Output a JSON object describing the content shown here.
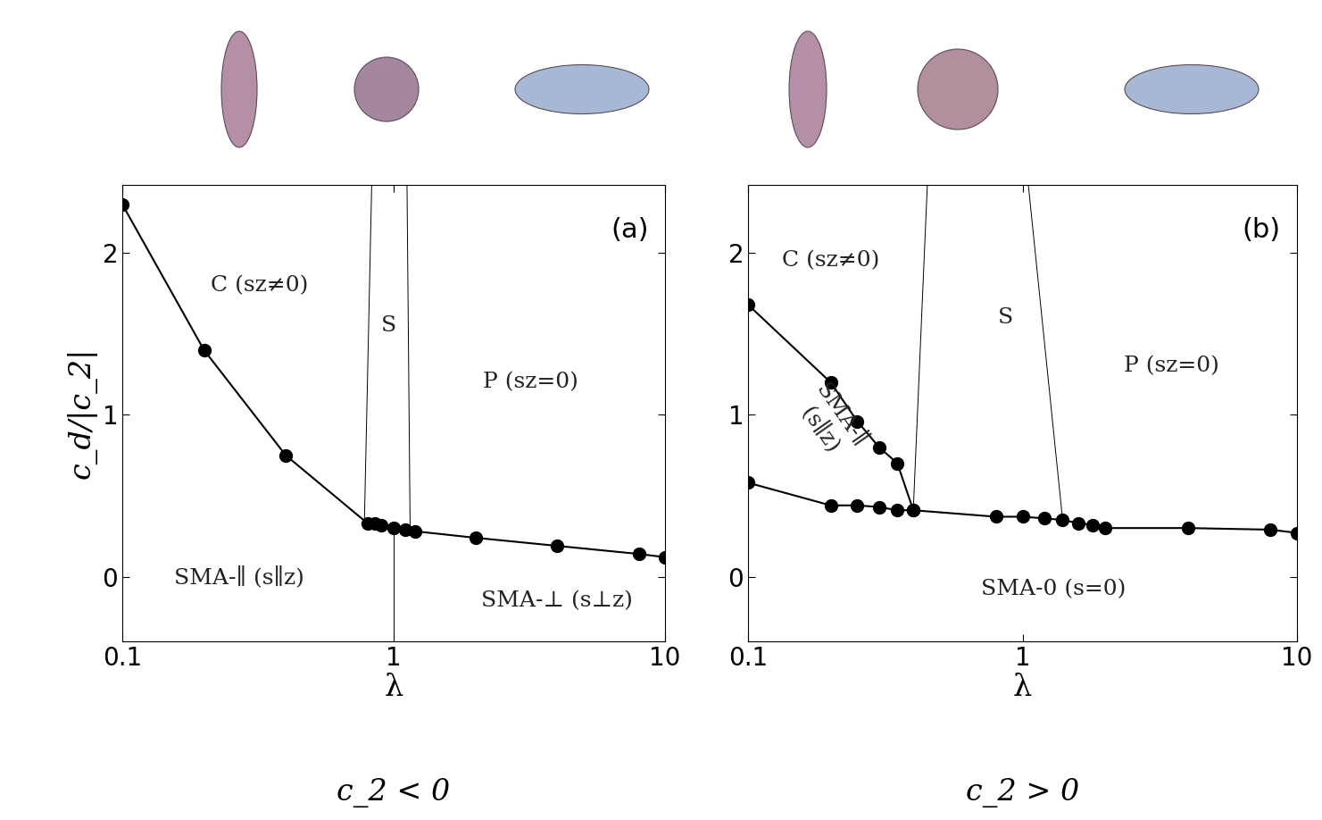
{
  "chart_data": [
    {
      "type": "line",
      "title": "(a)",
      "subtitle": "c_2 < 0",
      "x_label": "λ",
      "y_label": "c_d/|c_2|",
      "log": "x",
      "xlim": [
        0.1,
        10
      ],
      "ylim": [
        -0.4,
        2.42
      ],
      "xticks": [
        0.1,
        1,
        10
      ],
      "yticks": [
        0,
        1,
        2
      ],
      "series": [
        {
          "color": "#000000",
          "marker": "o",
          "line_style": "solid",
          "x": [
            0.1,
            0.2,
            0.4,
            0.8,
            0.85,
            0.9,
            1.0,
            1.1,
            1.2,
            2,
            4,
            8,
            10
          ],
          "values": [
            2.3,
            1.4,
            0.75,
            0.33,
            0.33,
            0.32,
            0.3,
            0.29,
            0.28,
            0.24,
            0.19,
            0.14,
            0.12
          ]
        },
        {
          "color": "#000000",
          "marker": "none",
          "line_style": "solid",
          "x": [
            0.78,
            0.83
          ],
          "values": [
            0.33,
            2.42
          ]
        },
        {
          "color": "#000000",
          "marker": "none",
          "line_style": "solid",
          "x": [
            1.15,
            1.12
          ],
          "values": [
            0.29,
            2.42
          ]
        },
        {
          "color": "#000000",
          "marker": "none",
          "line_style": "solid",
          "x": [
            1.0,
            1.0
          ],
          "values": [
            -0.4,
            0.3
          ]
        }
      ],
      "annotations": [
        {
          "text": "C (sz≠0)"
        },
        {
          "text": "S"
        },
        {
          "text": "P (sz=0)"
        },
        {
          "text": "SMA-∥ (s∥z)"
        },
        {
          "text": "SMA-⊥ (s⊥z)"
        }
      ]
    },
    {
      "type": "line",
      "title": "(b)",
      "subtitle": "c_2 > 0",
      "x_label": "λ",
      "log": "x",
      "xlim": [
        0.1,
        10
      ],
      "ylim": [
        -0.4,
        2.42
      ],
      "xticks": [
        0.1,
        1,
        10
      ],
      "yticks": [
        0,
        1,
        2
      ],
      "series": [
        {
          "color": "#000000",
          "marker": "o",
          "line_style": "solid",
          "x": [
            0.1,
            0.2,
            0.25,
            0.3,
            0.35,
            0.4
          ],
          "values": [
            1.68,
            1.2,
            0.96,
            0.8,
            0.7,
            0.41
          ]
        },
        {
          "color": "#000000",
          "marker": "o",
          "line_style": "solid",
          "x": [
            0.1,
            0.2,
            0.25,
            0.3,
            0.35,
            0.4,
            0.8,
            1.0,
            1.2,
            1.4,
            1.6,
            1.8,
            2,
            4,
            8,
            10
          ],
          "values": [
            0.58,
            0.44,
            0.44,
            0.43,
            0.41,
            0.41,
            0.37,
            0.37,
            0.36,
            0.35,
            0.33,
            0.32,
            0.3,
            0.3,
            0.29,
            0.27
          ]
        },
        {
          "color": "#000000",
          "marker": "none",
          "line_style": "solid",
          "x": [
            0.4,
            0.45
          ],
          "values": [
            0.41,
            2.42
          ]
        },
        {
          "color": "#000000",
          "marker": "none",
          "line_style": "solid",
          "x": [
            1.4,
            1.05
          ],
          "values": [
            0.35,
            2.42
          ]
        }
      ],
      "annotations": [
        {
          "text": "C (sz≠0)"
        },
        {
          "text": "S"
        },
        {
          "text": "P (sz=0)"
        },
        {
          "text": "SMA-∥\n(s∥z)"
        },
        {
          "text": "SMA-0 (s=0)"
        }
      ]
    }
  ]
}
